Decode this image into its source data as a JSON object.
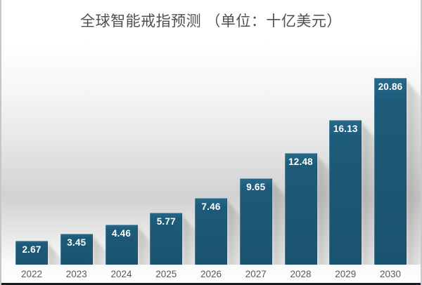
{
  "chart_data": {
    "type": "bar",
    "title": "全球智能戒指预测 （单位：十亿美元）",
    "unit": "十亿美元",
    "categories": [
      "2022",
      "2023",
      "2024",
      "2025",
      "2026",
      "2027",
      "2028",
      "2029",
      "2030"
    ],
    "values": [
      2.67,
      3.45,
      4.46,
      5.77,
      7.46,
      9.65,
      12.48,
      16.13,
      20.86
    ],
    "xlabel": "",
    "ylabel": "十亿美元",
    "ylim": [
      0,
      22
    ],
    "grid": "off",
    "legend": "none",
    "value_labels_position": "inside-top",
    "colors": {
      "bar_fill": "#1d5b7a",
      "bar_highlight": "#27698a",
      "value_label": "#ffffff",
      "axis_label": "#595959",
      "title_text": "#4f4f4f",
      "wall_gray": "#d1d1d1",
      "bottom_strip": "#171c24"
    }
  }
}
